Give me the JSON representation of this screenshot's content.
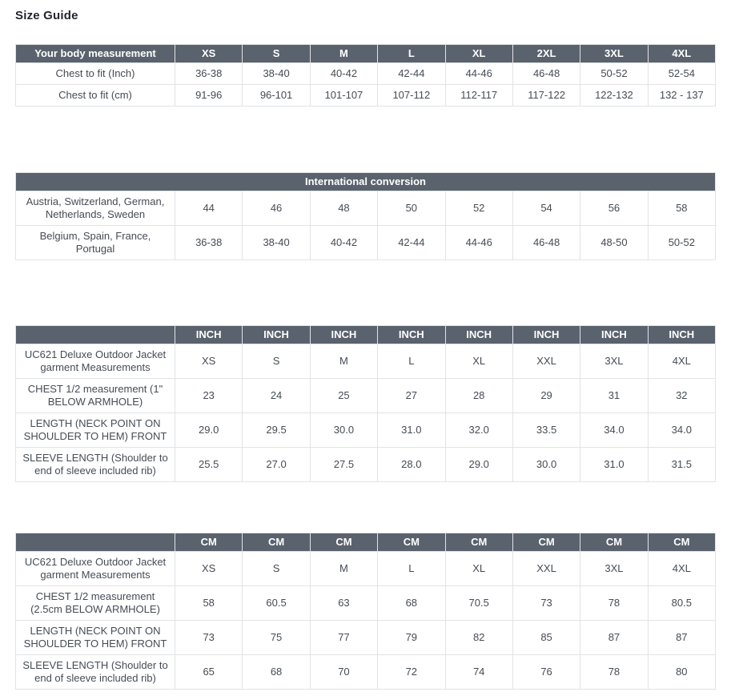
{
  "page": {
    "title": "Size Guide"
  },
  "colors": {
    "header_bg": "#5a626e",
    "header_text": "#ffffff",
    "cell_text": "#454c55",
    "border": "#e2e3e5",
    "title_text": "#23262c"
  },
  "tables": [
    {
      "name": "body-measurement-table",
      "header": [
        "Your body measurement",
        "XS",
        "S",
        "M",
        "L",
        "XL",
        "2XL",
        "3XL",
        "4XL"
      ],
      "rows": [
        [
          "Chest to fit (Inch)",
          "36-38",
          "38-40",
          "40-42",
          "42-44",
          "44-46",
          "46-48",
          "50-52",
          "52-54"
        ],
        [
          "Chest to fit (cm)",
          "91-96",
          "96-101",
          "101-107",
          "107-112",
          "112-117",
          "117-122",
          "122-132",
          "132 - 137"
        ]
      ]
    },
    {
      "name": "international-conversion-table",
      "header_span": "International conversion",
      "rows": [
        [
          "Austria, Switzerland, German, Netherlands, Sweden",
          "44",
          "46",
          "48",
          "50",
          "52",
          "54",
          "56",
          "58"
        ],
        [
          "Belgium, Spain, France, Portugal",
          "36-38",
          "38-40",
          "40-42",
          "42-44",
          "44-46",
          "46-48",
          "48-50",
          "50-52"
        ]
      ]
    },
    {
      "name": "garment-measurements-inch-table",
      "header": [
        "",
        "INCH",
        "INCH",
        "INCH",
        "INCH",
        "INCH",
        "INCH",
        "INCH",
        "INCH"
      ],
      "rows": [
        [
          "UC621 Deluxe Outdoor Jacket garment Measurements",
          "XS",
          "S",
          "M",
          "L",
          "XL",
          "XXL",
          "3XL",
          "4XL"
        ],
        [
          "CHEST 1/2 measurement (1\" BELOW ARMHOLE)",
          "23",
          "24",
          "25",
          "27",
          "28",
          "29",
          "31",
          "32"
        ],
        [
          "LENGTH (NECK POINT ON SHOULDER TO HEM) FRONT",
          "29.0",
          "29.5",
          "30.0",
          "31.0",
          "32.0",
          "33.5",
          "34.0",
          "34.0"
        ],
        [
          "SLEEVE LENGTH (Shoulder to end of sleeve included rib)",
          "25.5",
          "27.0",
          "27.5",
          "28.0",
          "29.0",
          "30.0",
          "31.0",
          "31.5"
        ]
      ]
    },
    {
      "name": "garment-measurements-cm-table",
      "header": [
        "",
        "CM",
        "CM",
        "CM",
        "CM",
        "CM",
        "CM",
        "CM",
        "CM"
      ],
      "rows": [
        [
          "UC621 Deluxe Outdoor Jacket garment Measurements",
          "XS",
          "S",
          "M",
          "L",
          "XL",
          "XXL",
          "3XL",
          "4XL"
        ],
        [
          "CHEST 1/2 measurement (2.5cm BELOW ARMHOLE)",
          "58",
          "60.5",
          "63",
          "68",
          "70.5",
          "73",
          "78",
          "80.5"
        ],
        [
          "LENGTH (NECK POINT ON SHOULDER TO HEM) FRONT",
          "73",
          "75",
          "77",
          "79",
          "82",
          "85",
          "87",
          "87"
        ],
        [
          "SLEEVE LENGTH (Shoulder to end of sleeve included rib)",
          "65",
          "68",
          "70",
          "72",
          "74",
          "76",
          "78",
          "80"
        ]
      ]
    }
  ]
}
